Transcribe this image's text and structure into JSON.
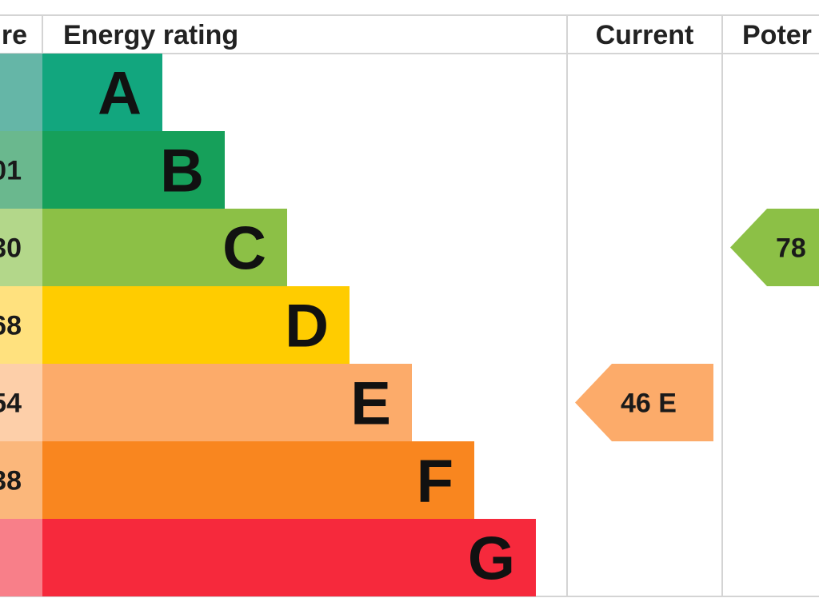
{
  "chart_data": {
    "type": "bar",
    "headers": {
      "score": "re",
      "rating": "Energy rating",
      "current": "Current",
      "potential": "Poter"
    },
    "bands": [
      {
        "letter": "A",
        "score": "",
        "color": "#12a67e",
        "score_color": "#65b6a7"
      },
      {
        "letter": "B",
        "score": "01",
        "color": "#16a05a",
        "score_color": "#6ab88e"
      },
      {
        "letter": "C",
        "score": "30",
        "color": "#8cc046",
        "score_color": "#b3d78a"
      },
      {
        "letter": "D",
        "score": "68",
        "color": "#ffcc00",
        "score_color": "#ffe17e"
      },
      {
        "letter": "E",
        "score": "54",
        "color": "#fcab6a",
        "score_color": "#fdcfa9"
      },
      {
        "letter": "F",
        "score": "38",
        "color": "#f9861f",
        "score_color": "#fbb77b"
      },
      {
        "letter": "G",
        "score": "",
        "color": "#f6293c",
        "score_color": "#f87f89"
      }
    ],
    "current": {
      "value": 46,
      "band": "E",
      "color": "#fcab6a"
    },
    "potential": {
      "value": 78,
      "band": "C",
      "color": "#8cc046"
    }
  }
}
